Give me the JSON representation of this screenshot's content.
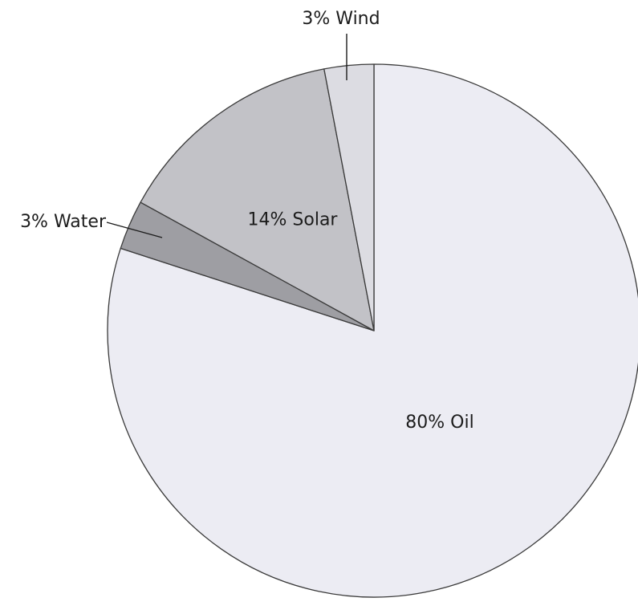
{
  "chart_data": {
    "type": "pie",
    "title": "",
    "slices": [
      {
        "label": "80% Oil",
        "value": 80,
        "color": "#ececf3"
      },
      {
        "label": "3% Water",
        "value": 3,
        "color": "#9e9ea3"
      },
      {
        "label": "14% Solar",
        "value": 14,
        "color": "#c2c2c7"
      },
      {
        "label": "3% Wind",
        "value": 3,
        "color": "#dcdce2"
      }
    ],
    "start": "12 o'clock",
    "direction": "clockwise",
    "legend": "none"
  }
}
